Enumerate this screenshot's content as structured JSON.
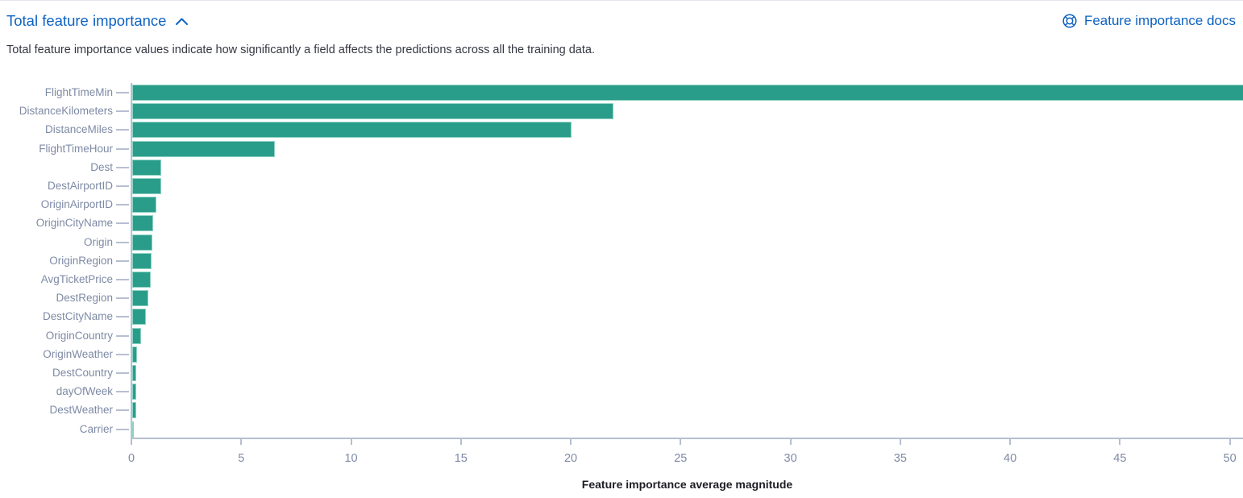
{
  "panel": {
    "title": "Total feature importance",
    "docs_link_label": "Feature importance docs",
    "description": "Total feature importance values indicate how significantly a field affects the predictions across all the training data."
  },
  "icons": {
    "collapse": "chevron-up-icon",
    "docs": "life-ring-help-icon"
  },
  "colors": {
    "link_blue": "#0d62c1",
    "bar_teal": "#2a9d8a",
    "bar_edge": "#8fd2c4",
    "axis_text": "#7e8aa5",
    "axis_line": "#b6bfd2",
    "body_text": "#343741",
    "axis_title_text": "#1d1e24"
  },
  "chart_data": {
    "type": "bar",
    "orientation": "horizontal",
    "title": "Total feature importance",
    "xlabel": "Feature importance average magnitude",
    "ylabel": "",
    "categories": [
      "FlightTimeMin",
      "DistanceKilometers",
      "DistanceMiles",
      "FlightTimeHour",
      "Dest",
      "DestAirportID",
      "OriginAirportID",
      "OriginCityName",
      "Origin",
      "OriginRegion",
      "AvgTicketPrice",
      "DestRegion",
      "DestCityName",
      "OriginCountry",
      "OriginWeather",
      "DestCountry",
      "dayOfWeek",
      "DestWeather",
      "Carrier"
    ],
    "values": [
      50.6,
      21.9,
      20.0,
      6.5,
      1.33,
      1.31,
      1.09,
      0.97,
      0.92,
      0.87,
      0.84,
      0.72,
      0.61,
      0.41,
      0.21,
      0.2,
      0.19,
      0.17,
      0.07
    ],
    "x_ticks": [
      0,
      5,
      10,
      15,
      20,
      25,
      30,
      35,
      40,
      45,
      50
    ],
    "xlim": [
      0,
      50.6
    ],
    "grid": false,
    "legend": false
  }
}
